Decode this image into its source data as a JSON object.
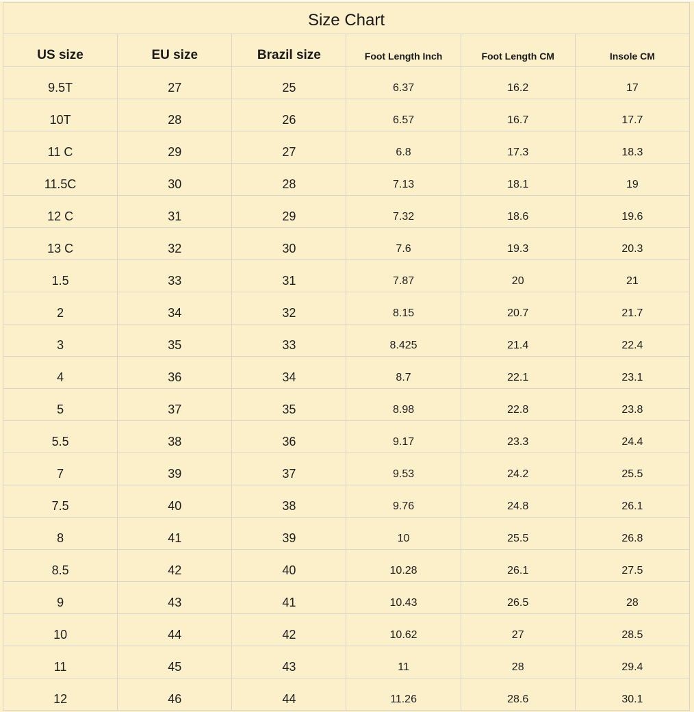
{
  "page": {
    "title": "Size Chart"
  },
  "colors": {
    "background": "#fcf0cb",
    "grid_border": "#d7d4ca",
    "text": "#1d1d1d"
  },
  "chart_data": {
    "type": "table",
    "title": "Size Chart",
    "columns": [
      "US size",
      "EU size",
      "Brazil size",
      "Foot Length Inch",
      "Foot Length CM",
      "Insole CM"
    ],
    "rows": [
      [
        "9.5T",
        "27",
        "25",
        "6.37",
        "16.2",
        "17"
      ],
      [
        "10T",
        "28",
        "26",
        "6.57",
        "16.7",
        "17.7"
      ],
      [
        "11 C",
        "29",
        "27",
        "6.8",
        "17.3",
        "18.3"
      ],
      [
        "11.5C",
        "30",
        "28",
        "7.13",
        "18.1",
        "19"
      ],
      [
        "12 C",
        "31",
        "29",
        "7.32",
        "18.6",
        "19.6"
      ],
      [
        "13 C",
        "32",
        "30",
        "7.6",
        "19.3",
        "20.3"
      ],
      [
        "1.5",
        "33",
        "31",
        "7.87",
        "20",
        "21"
      ],
      [
        "2",
        "34",
        "32",
        "8.15",
        "20.7",
        "21.7"
      ],
      [
        "3",
        "35",
        "33",
        "8.425",
        "21.4",
        "22.4"
      ],
      [
        "4",
        "36",
        "34",
        "8.7",
        "22.1",
        "23.1"
      ],
      [
        "5",
        "37",
        "35",
        "8.98",
        "22.8",
        "23.8"
      ],
      [
        "5.5",
        "38",
        "36",
        "9.17",
        "23.3",
        "24.4"
      ],
      [
        "7",
        "39",
        "37",
        "9.53",
        "24.2",
        "25.5"
      ],
      [
        "7.5",
        "40",
        "38",
        "9.76",
        "24.8",
        "26.1"
      ],
      [
        "8",
        "41",
        "39",
        "10",
        "25.5",
        "26.8"
      ],
      [
        "8.5",
        "42",
        "40",
        "10.28",
        "26.1",
        "27.5"
      ],
      [
        "9",
        "43",
        "41",
        "10.43",
        "26.5",
        "28"
      ],
      [
        "10",
        "44",
        "42",
        "10.62",
        "27",
        "28.5"
      ],
      [
        "11",
        "45",
        "43",
        "11",
        "28",
        "29.4"
      ],
      [
        "12",
        "46",
        "44",
        "11.26",
        "28.6",
        "30.1"
      ]
    ]
  }
}
